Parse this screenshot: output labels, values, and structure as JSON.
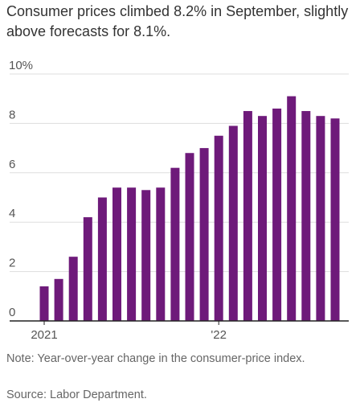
{
  "headline": "Consumer prices climbed 8.2% in September, slightly above forecasts for 8.1%.",
  "note": "Note: Year-over-year change in the consumer-price index.",
  "source": "Source: Labor Department.",
  "chart_data": {
    "type": "bar",
    "title": "",
    "xlabel": "",
    "ylabel": "",
    "ylim": [
      0,
      10
    ],
    "y_ticks": [
      0,
      2,
      4,
      6,
      8,
      10
    ],
    "y_tick_labels": [
      "0",
      "2",
      "4",
      "6",
      "8",
      "10%"
    ],
    "x_tick_labels": [
      {
        "label": "2021",
        "index": 0
      },
      {
        "label": "'22",
        "index": 12
      }
    ],
    "categories": [
      "Jan 2021",
      "Feb 2021",
      "Mar 2021",
      "Apr 2021",
      "May 2021",
      "Jun 2021",
      "Jul 2021",
      "Aug 2021",
      "Sep 2021",
      "Oct 2021",
      "Nov 2021",
      "Dec 2021",
      "Jan 2022",
      "Feb 2022",
      "Mar 2022",
      "Apr 2022",
      "May 2022",
      "Jun 2022",
      "Jul 2022",
      "Aug 2022",
      "Sep 2022"
    ],
    "values": [
      1.4,
      1.7,
      2.6,
      4.2,
      5.0,
      5.4,
      5.4,
      5.3,
      5.4,
      6.2,
      6.8,
      7.0,
      7.5,
      7.9,
      8.5,
      8.3,
      8.6,
      9.1,
      8.5,
      8.3,
      8.2
    ],
    "grid": true,
    "colors": {
      "bar": "#6e1a7a",
      "grid": "#dddddd",
      "axis": "#222222",
      "tick_text": "#555555"
    }
  }
}
